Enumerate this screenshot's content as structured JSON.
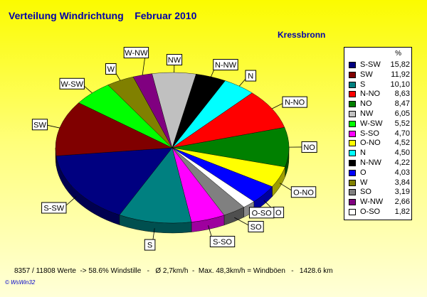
{
  "title": "Verteilung Windrichtung    Februar 2010",
  "location": "Kressbronn",
  "legend_header": "%",
  "footer": "8357 / 11808 Werte  -> 58.6% Windstille   -   Ø 2,7km/h  -  Max. 48,3km/h = Windböen   -   1428.6 km",
  "credit": "© WsWin32",
  "chart_data": {
    "type": "pie",
    "unit": "%",
    "slices": [
      {
        "label": "S-SW",
        "value": 15.82,
        "value_text": "15,82",
        "color": "#000080"
      },
      {
        "label": "SW",
        "value": 11.92,
        "value_text": "11,92",
        "color": "#800000"
      },
      {
        "label": "S",
        "value": 10.1,
        "value_text": "10,10",
        "color": "#008080"
      },
      {
        "label": "N-NO",
        "value": 8.63,
        "value_text": "8,63",
        "color": "#ff0000"
      },
      {
        "label": "NO",
        "value": 8.47,
        "value_text": "8,47",
        "color": "#008000"
      },
      {
        "label": "NW",
        "value": 6.05,
        "value_text": "6,05",
        "color": "#c0c0c0"
      },
      {
        "label": "W-SW",
        "value": 5.52,
        "value_text": "5,52",
        "color": "#00ff00"
      },
      {
        "label": "S-SO",
        "value": 4.7,
        "value_text": "4,70",
        "color": "#ff00ff"
      },
      {
        "label": "O-NO",
        "value": 4.52,
        "value_text": "4,52",
        "color": "#ffff00"
      },
      {
        "label": "N",
        "value": 4.5,
        "value_text": "4,50",
        "color": "#00ffff"
      },
      {
        "label": "N-NW",
        "value": 4.22,
        "value_text": "4,22",
        "color": "#000000"
      },
      {
        "label": "O",
        "value": 4.03,
        "value_text": "4,03",
        "color": "#0000ff"
      },
      {
        "label": "W",
        "value": 3.84,
        "value_text": "3,84",
        "color": "#808000"
      },
      {
        "label": "SO",
        "value": 3.19,
        "value_text": "3,19",
        "color": "#808080"
      },
      {
        "label": "W-NW",
        "value": 2.66,
        "value_text": "2,66",
        "color": "#800080"
      },
      {
        "label": "O-SO",
        "value": 1.82,
        "value_text": "1,82",
        "color": "#ffffff"
      }
    ],
    "pie_order": [
      "N",
      "N-NO",
      "NO",
      "O-NO",
      "O",
      "O-SO",
      "SO",
      "S-SO",
      "S",
      "S-SW",
      "SW",
      "W-SW",
      "W",
      "W-NW",
      "NW",
      "N-NW"
    ],
    "legend_position": "right"
  }
}
